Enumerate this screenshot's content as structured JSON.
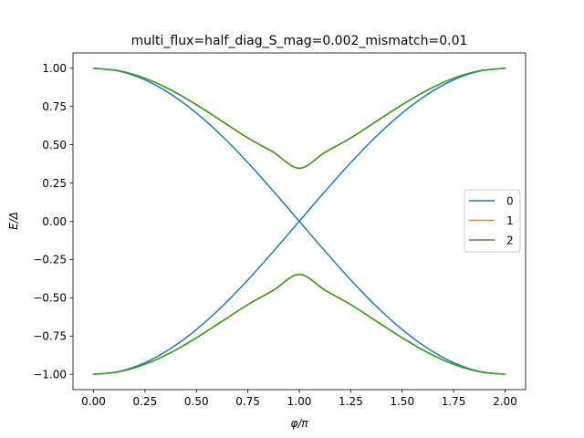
{
  "chart_data": {
    "type": "line",
    "title": "multi_flux=half_diag_S_mag=0.002_mismatch=0.01",
    "xlabel": "φ/π",
    "ylabel": "E/Δ",
    "xlim": [
      -0.1,
      2.1
    ],
    "ylim": [
      -1.1,
      1.1
    ],
    "xticks": [
      0.0,
      0.25,
      0.5,
      0.75,
      1.0,
      1.25,
      1.5,
      1.75,
      2.0
    ],
    "xtick_labels": [
      "0.00",
      "0.25",
      "0.50",
      "0.75",
      "1.00",
      "1.25",
      "1.50",
      "1.75",
      "2.00"
    ],
    "yticks": [
      1.0,
      0.75,
      0.5,
      0.25,
      0.0,
      -0.25,
      -0.5,
      -0.75,
      -1.0
    ],
    "ytick_labels": [
      "1.00",
      "0.75",
      "0.50",
      "0.25",
      "0.00",
      "−0.25",
      "−0.50",
      "−0.75",
      "−1.00"
    ],
    "grid": false,
    "legend_position": "right",
    "x": [
      0.0,
      0.125,
      0.25,
      0.375,
      0.5,
      0.625,
      0.75,
      0.875,
      1.0,
      1.125,
      1.25,
      1.375,
      1.5,
      1.625,
      1.75,
      1.875,
      2.0
    ],
    "series": [
      {
        "name": "0",
        "color": "#1f77b4",
        "branches": [
          [
            1.0,
            0.981,
            0.924,
            0.831,
            0.707,
            0.556,
            0.383,
            0.195,
            0.0,
            -0.195,
            -0.383,
            -0.556,
            -0.707,
            -0.831,
            -0.924,
            -0.981,
            -1.0
          ],
          [
            -1.0,
            -0.981,
            -0.924,
            -0.831,
            -0.707,
            -0.556,
            -0.383,
            -0.195,
            0.0,
            0.195,
            0.383,
            0.556,
            0.707,
            0.831,
            0.924,
            0.981,
            1.0
          ]
        ]
      },
      {
        "name": "1",
        "color": "#ff7f0e",
        "branches": [
          [
            1.0,
            0.983,
            0.934,
            0.857,
            0.76,
            0.652,
            0.543,
            0.449,
            0.345,
            0.449,
            0.543,
            0.652,
            0.76,
            0.857,
            0.934,
            0.983,
            1.0
          ],
          [
            -1.0,
            -0.983,
            -0.934,
            -0.857,
            -0.76,
            -0.652,
            -0.543,
            -0.449,
            -0.345,
            -0.449,
            -0.543,
            -0.652,
            -0.76,
            -0.857,
            -0.934,
            -0.983,
            -1.0
          ]
        ]
      },
      {
        "name": "2",
        "color": "#2ca02c",
        "branches": [
          [
            1.0,
            0.983,
            0.935,
            0.859,
            0.762,
            0.654,
            0.545,
            0.451,
            0.347,
            0.451,
            0.545,
            0.654,
            0.762,
            0.859,
            0.935,
            0.983,
            1.0
          ],
          [
            -1.0,
            -0.983,
            -0.935,
            -0.859,
            -0.762,
            -0.654,
            -0.545,
            -0.451,
            -0.347,
            -0.451,
            -0.545,
            -0.654,
            -0.762,
            -0.859,
            -0.935,
            -0.983,
            -1.0
          ]
        ]
      }
    ]
  }
}
